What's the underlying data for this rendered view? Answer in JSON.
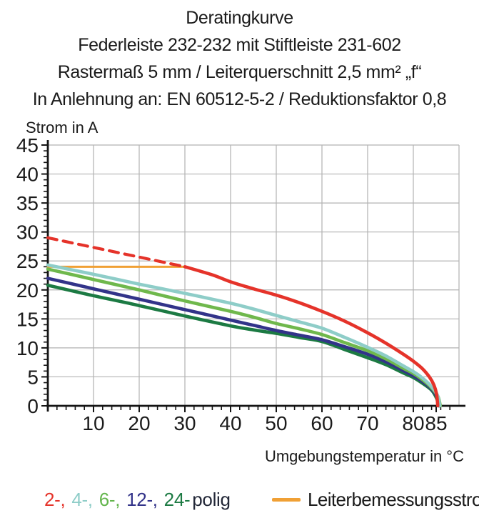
{
  "header": {
    "lines": [
      "Deratingkurve",
      "Federleiste 232-232 mit Stiftleiste 231-602",
      "Rastermaß 5 mm / Leiterquerschnitt 2,5 mm² „f“",
      "In Anlehnung an: EN 60512-5-2 / Reduktionsfaktor 0,8"
    ]
  },
  "legend": {
    "poles": [
      {
        "label": "2-,",
        "color": "#e5332a"
      },
      {
        "label": "4-,",
        "color": "#8ecdc8"
      },
      {
        "label": "6-,",
        "color": "#63b54c"
      },
      {
        "label": "12-,",
        "color": "#323389"
      },
      {
        "label": "24-",
        "color": "#1c7a43"
      }
    ],
    "suffix": "polig",
    "suffix_color": "#232838",
    "line_label": "Leiterbemessungsstrom",
    "line_color": "#f0a035"
  },
  "chart_data": {
    "type": "line",
    "title": "Deratingkurve",
    "xlabel": "Umgebungstemperatur in °C",
    "ylabel": "Strom in A",
    "xlim": [
      0,
      90
    ],
    "ylim": [
      0,
      45
    ],
    "x_ticks": [
      10,
      20,
      30,
      40,
      50,
      60,
      70,
      80,
      85
    ],
    "y_ticks": [
      0,
      5,
      10,
      15,
      20,
      25,
      30,
      35,
      40,
      45
    ],
    "x_minor_step": 2,
    "y_minor_step": 1,
    "grid": true,
    "grid_color": "#b2b2b2",
    "axis_color": "#141414",
    "legend_position": "bottom",
    "series": [
      {
        "name": "Leiterbemessungsstrom",
        "color": "#f0a035",
        "width": 3,
        "dash": null,
        "points": [
          [
            0,
            24
          ],
          [
            30,
            24
          ]
        ]
      },
      {
        "name": "24-polig",
        "color": "#1c7a43",
        "width": 4.6,
        "dash": null,
        "points": [
          [
            0,
            20.8
          ],
          [
            10,
            19.0
          ],
          [
            20,
            17.3
          ],
          [
            30,
            15.5
          ],
          [
            40,
            13.8
          ],
          [
            45,
            13.1
          ],
          [
            50,
            12.5
          ],
          [
            55,
            11.8
          ],
          [
            60,
            11.1
          ],
          [
            65,
            9.7
          ],
          [
            70,
            8.3
          ],
          [
            74,
            7.1
          ],
          [
            78,
            5.6
          ],
          [
            80,
            4.9
          ],
          [
            82,
            3.9
          ],
          [
            84,
            2.7
          ],
          [
            85.1,
            1.3
          ],
          [
            85.6,
            0
          ]
        ]
      },
      {
        "name": "12-polig",
        "color": "#323389",
        "width": 4.6,
        "dash": null,
        "points": [
          [
            0,
            22.0
          ],
          [
            10,
            20.2
          ],
          [
            20,
            18.4
          ],
          [
            30,
            16.6
          ],
          [
            40,
            14.8
          ],
          [
            45,
            13.9
          ],
          [
            50,
            13.0
          ],
          [
            55,
            12.2
          ],
          [
            60,
            11.4
          ],
          [
            65,
            10.2
          ],
          [
            70,
            8.9
          ],
          [
            74,
            7.6
          ],
          [
            78,
            6.0
          ],
          [
            80,
            5.2
          ],
          [
            82,
            4.2
          ],
          [
            84,
            2.9
          ],
          [
            85.2,
            1.5
          ],
          [
            85.7,
            0
          ]
        ]
      },
      {
        "name": "6-polig",
        "color": "#6fb84c",
        "width": 4.6,
        "dash": null,
        "points": [
          [
            0,
            23.6
          ],
          [
            10,
            21.8
          ],
          [
            20,
            20.0
          ],
          [
            30,
            18.1
          ],
          [
            40,
            16.3
          ],
          [
            45,
            15.3
          ],
          [
            50,
            14.2
          ],
          [
            55,
            13.3
          ],
          [
            60,
            12.3
          ],
          [
            65,
            10.9
          ],
          [
            70,
            9.5
          ],
          [
            74,
            8.1
          ],
          [
            78,
            6.4
          ],
          [
            80,
            5.6
          ],
          [
            82,
            4.5
          ],
          [
            84,
            3.1
          ],
          [
            85.4,
            1.6
          ],
          [
            85.9,
            0
          ]
        ]
      },
      {
        "name": "4-polig",
        "color": "#8ecdc8",
        "width": 4.6,
        "dash": null,
        "points": [
          [
            0,
            24.3
          ],
          [
            10,
            22.7
          ],
          [
            20,
            21.0
          ],
          [
            30,
            19.4
          ],
          [
            40,
            17.7
          ],
          [
            45,
            16.7
          ],
          [
            50,
            15.6
          ],
          [
            55,
            14.5
          ],
          [
            60,
            13.4
          ],
          [
            65,
            11.8
          ],
          [
            70,
            10.1
          ],
          [
            74,
            8.6
          ],
          [
            78,
            6.8
          ],
          [
            80,
            5.9
          ],
          [
            82,
            4.8
          ],
          [
            84,
            3.3
          ],
          [
            85.3,
            1.8
          ],
          [
            85.8,
            0
          ]
        ]
      },
      {
        "name": "2-polig-gestrichelt",
        "color": "#e5332a",
        "width": 4.2,
        "dash": "13 9",
        "points": [
          [
            0,
            29
          ],
          [
            30,
            24
          ]
        ]
      },
      {
        "name": "2-polig",
        "color": "#e5332a",
        "width": 4.6,
        "dash": null,
        "points": [
          [
            30,
            24
          ],
          [
            36,
            22.6
          ],
          [
            40,
            21.4
          ],
          [
            45,
            20.2
          ],
          [
            50,
            19.1
          ],
          [
            55,
            17.8
          ],
          [
            60,
            16.3
          ],
          [
            65,
            14.6
          ],
          [
            70,
            12.6
          ],
          [
            74,
            10.8
          ],
          [
            78,
            8.8
          ],
          [
            80,
            7.7
          ],
          [
            82,
            6.4
          ],
          [
            83.5,
            5.0
          ],
          [
            84.5,
            3.6
          ],
          [
            85.1,
            2.0
          ],
          [
            85.35,
            0
          ]
        ]
      }
    ]
  }
}
